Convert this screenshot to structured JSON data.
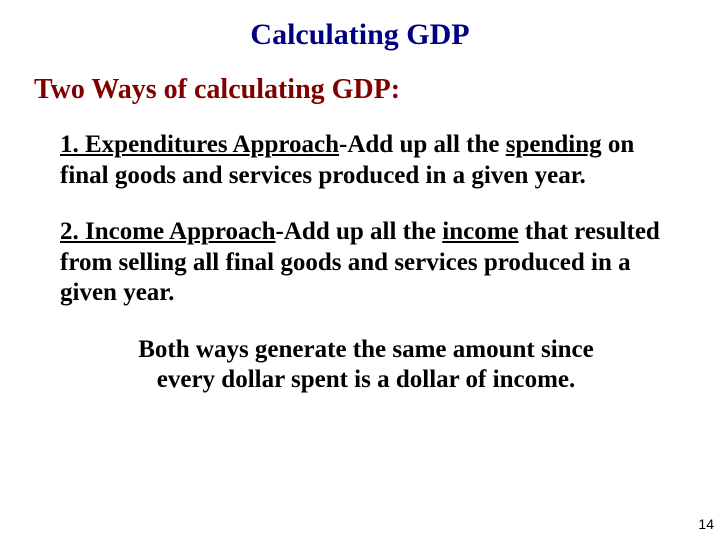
{
  "title": {
    "text": "Calculating GDP",
    "color": "#000080",
    "fontsize": 30
  },
  "subtitle": {
    "text": "Two Ways of calculating GDP:",
    "color": "#800000",
    "fontsize": 28
  },
  "items_fontsize": 25,
  "item1": {
    "lead": "1. Expenditures Approach",
    "dash": "-Add up all the ",
    "u_word": "spending",
    "rest": " on final goods and services produced in a given year."
  },
  "item2": {
    "lead": "2. Income Approach",
    "dash": "-Add up all the ",
    "u_word": "income",
    "rest": " that resulted from selling all final goods and services produced in a given year."
  },
  "conclusion": {
    "line1": "Both ways generate the same amount since",
    "line2": "every dollar spent is a dollar of income.",
    "fontsize": 25
  },
  "page_number": {
    "text": "14",
    "fontsize": 14
  }
}
